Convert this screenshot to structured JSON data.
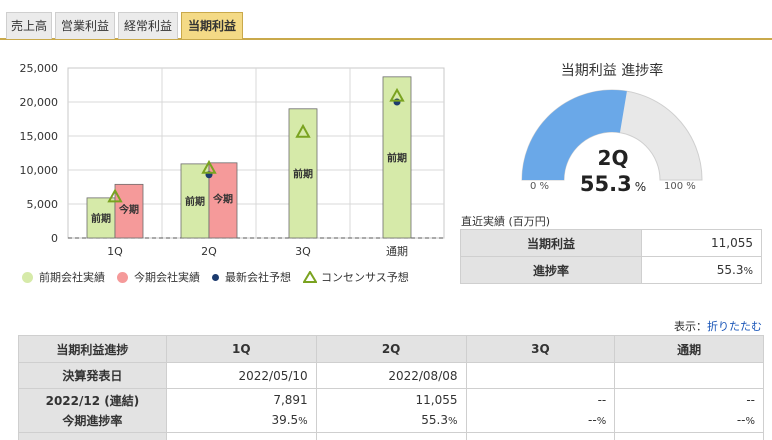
{
  "tabs": [
    {
      "label": "売上高",
      "active": false
    },
    {
      "label": "営業利益",
      "active": false
    },
    {
      "label": "経常利益",
      "active": false
    },
    {
      "label": "当期利益",
      "active": true
    }
  ],
  "chart_data": {
    "type": "bar",
    "categories": [
      "1Q",
      "2Q",
      "3Q",
      "通期"
    ],
    "yticks": [
      "25,000",
      "20,000",
      "15,000",
      "10,000",
      "5,000",
      "0"
    ],
    "ylim": [
      0,
      25000
    ],
    "series": [
      {
        "name": "前期会社実績",
        "values": [
          5900,
          10900,
          19000,
          23700
        ],
        "color": "#d6eaa9",
        "bar_label": "前期"
      },
      {
        "name": "今期会社実績",
        "values": [
          7891,
          11055,
          null,
          null
        ],
        "color": "#f59a9a",
        "bar_label": "今期"
      },
      {
        "name": "最新会社予想",
        "values": [
          null,
          9300,
          null,
          20000
        ],
        "color": "#1c3b6e"
      },
      {
        "name": "コンセンサス予想",
        "values": [
          6100,
          10300,
          15600,
          20900
        ],
        "color": "#7aa320"
      }
    ],
    "grid": true
  },
  "legend": [
    {
      "label": "前期会社実績",
      "color": "#d6eaa9",
      "shape": "dot"
    },
    {
      "label": "今期会社実績",
      "color": "#f59a9a",
      "shape": "dot"
    },
    {
      "label": "最新会社予想",
      "color": "#1c3b6e",
      "shape": "small-dot"
    },
    {
      "label": "コンセンサス予想",
      "color": "#7aa320",
      "shape": "triangle"
    }
  ],
  "gauge": {
    "title": "当期利益 進捗率",
    "quarter": "2Q",
    "percent": "55.3",
    "percent_unit": "%",
    "progress_fraction": 0.553,
    "min_label": "0 %",
    "max_label": "100 %",
    "fill_color": "#6aa8e8",
    "track_color": "#e8e8e8"
  },
  "latest": {
    "caption": "直近実績 (百万円)",
    "profit_label": "当期利益",
    "profit_value": "11,055",
    "progress_label": "進捗率",
    "progress_value": "55.3",
    "progress_unit": "%"
  },
  "display_toggle": {
    "prefix": "表示：",
    "link": "折りたたむ"
  },
  "progress_table": {
    "header": [
      "当期利益進捗",
      "1Q",
      "2Q",
      "3Q",
      "通期"
    ],
    "announce_label": "決算発表日",
    "announce_dates": [
      "2022/05/10",
      "2022/08/08",
      "",
      ""
    ],
    "period_label_1": "2022/12 (連結)",
    "period_label_2": "今期進捗率",
    "values": [
      "7,891",
      "11,055",
      "--",
      "--"
    ],
    "rates": [
      "39.5",
      "55.3",
      "--",
      "--"
    ],
    "rate_unit": "%"
  }
}
